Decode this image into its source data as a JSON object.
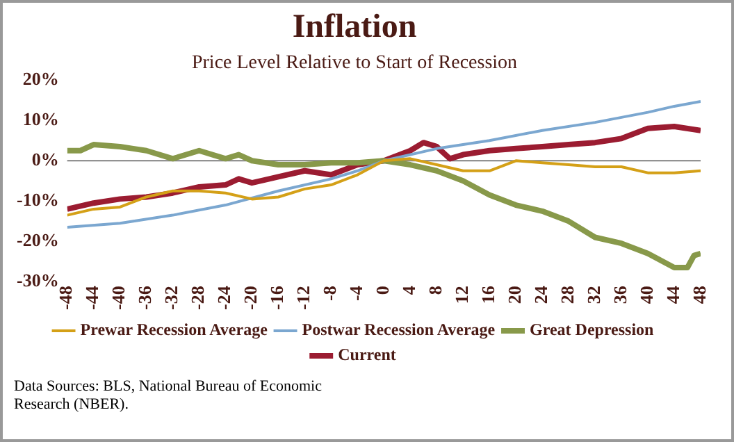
{
  "chart_data": {
    "type": "line",
    "title": "Inflation",
    "subtitle": "Price Level Relative to Start of Recession",
    "annotations": [
      "Data Sources: BLS, National Bureau of Economic Research (NBER)."
    ],
    "xlim": [
      -48,
      48
    ],
    "xticks": [
      -48,
      -44,
      -40,
      -36,
      -32,
      -28,
      -24,
      -20,
      -16,
      -12,
      -8,
      -4,
      0,
      4,
      8,
      12,
      16,
      20,
      24,
      28,
      32,
      36,
      40,
      44,
      48
    ],
    "ylim": [
      -30,
      20
    ],
    "yticks": [
      {
        "value": -30,
        "label": "-30%"
      },
      {
        "value": -20,
        "label": "-20%"
      },
      {
        "value": -10,
        "label": "-10%"
      },
      {
        "value": 0,
        "label": "0%"
      },
      {
        "value": 10,
        "label": "10%"
      },
      {
        "value": 20,
        "label": "20%"
      }
    ],
    "grid": false,
    "legend": "bottom",
    "marker": "none",
    "line_style": "solid",
    "ref_lines": [
      {
        "axis": "y",
        "value": 0,
        "color": "#808080"
      }
    ],
    "series": [
      {
        "name": "Prewar Recession Average",
        "color": "#d4a017",
        "x": [
          -48,
          -44,
          -40,
          -36,
          -32,
          -28,
          -24,
          -20,
          -16,
          -12,
          -8,
          -4,
          0,
          4,
          8,
          12,
          16,
          20,
          24,
          28,
          32,
          36,
          40,
          44,
          48
        ],
        "values": [
          -13.5,
          -12,
          -11.5,
          -9,
          -7.5,
          -7.5,
          -8,
          -9.5,
          -9,
          -7,
          -6,
          -3.5,
          0,
          0.5,
          -1,
          -2.5,
          -2.5,
          0,
          -0.5,
          -1,
          -1.5,
          -1.5,
          -3,
          -3,
          -2.5
        ]
      },
      {
        "name": "Postwar Recession Average",
        "color": "#7ba7d0",
        "x": [
          -48,
          -40,
          -32,
          -24,
          -16,
          -8,
          -4,
          0,
          8,
          16,
          24,
          32,
          40,
          44,
          48
        ],
        "values": [
          -16.5,
          -15.5,
          -13.5,
          -11,
          -7.5,
          -4.5,
          -2.5,
          0,
          3,
          5,
          7.5,
          9.5,
          12,
          13.5,
          14.7
        ]
      },
      {
        "name": "Great Depression",
        "color": "#88994a",
        "x": [
          -48,
          -46,
          -44,
          -40,
          -38,
          -36,
          -32,
          -28,
          -24,
          -22,
          -20,
          -16,
          -12,
          -8,
          -4,
          0,
          4,
          8,
          12,
          16,
          20,
          24,
          28,
          32,
          36,
          40,
          44,
          46,
          47,
          48
        ],
        "values": [
          2.5,
          2.5,
          4,
          3.5,
          3,
          2.5,
          0.5,
          2.5,
          0.5,
          1.5,
          0,
          -1,
          -1,
          -0.5,
          -0.5,
          0,
          -1,
          -2.5,
          -5,
          -8.5,
          -11,
          -12.5,
          -15,
          -19,
          -20.5,
          -23,
          -26.5,
          -26.5,
          -23.5,
          -23
        ]
      },
      {
        "name": "Current",
        "color": "#9b1c31",
        "x": [
          -48,
          -44,
          -40,
          -36,
          -32,
          -28,
          -24,
          -22,
          -20,
          -16,
          -12,
          -8,
          -4,
          0,
          4,
          6,
          8,
          10,
          12,
          16,
          20,
          24,
          28,
          32,
          36,
          40,
          44,
          48
        ],
        "values": [
          -12,
          -10.5,
          -9.5,
          -9,
          -8,
          -6.5,
          -6,
          -4.5,
          -5.5,
          -4,
          -2.5,
          -3.5,
          -1,
          0,
          2.5,
          4.5,
          3.5,
          0.5,
          1.5,
          2.5,
          3,
          3.5,
          4,
          4.5,
          5.5,
          8,
          8.5,
          7.5
        ]
      }
    ]
  }
}
